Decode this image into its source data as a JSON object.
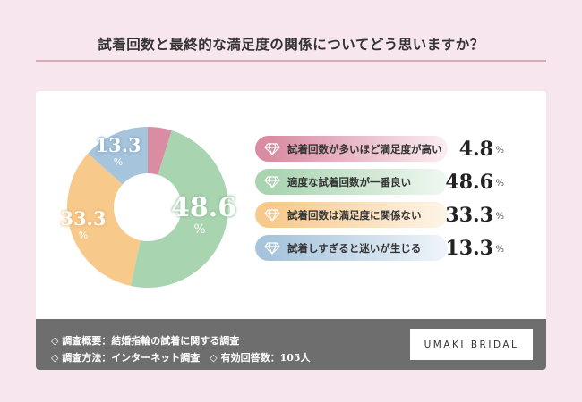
{
  "title": "試着回数と最終的な満足度の関係についてどう思いますか？",
  "chart_data": {
    "type": "pie",
    "subtype": "donut",
    "title": "試着回数と最終的な満足度の関係についてどう思いますか？",
    "categories": [
      "試着回数が多いほど満足度が高い",
      "適度な試着回数が一番良い",
      "試着回数は満足度に関係ない",
      "試着しすぎると迷いが生じる"
    ],
    "values": [
      4.8,
      48.6,
      33.3,
      13.3
    ],
    "unit": "%",
    "colors": [
      "#d98ca2",
      "#a8d4b0",
      "#f7c98b",
      "#a6c4dc"
    ],
    "start_angle": "12 o'clock",
    "direction": "clockwise",
    "legend_position": "right"
  },
  "segment_labels": [
    {
      "num": "48.6",
      "pct": "%"
    },
    {
      "num": "33.3",
      "pct": "%"
    },
    {
      "num": "13.3",
      "pct": "%"
    }
  ],
  "legend": [
    {
      "label": "試着回数が多いほど満足度が高い",
      "value": "4.8",
      "unit": "%",
      "gradient_from": "#d98ca2",
      "gradient_to": "#fbeef2"
    },
    {
      "label": "適度な試着回数が一番良い",
      "value": "48.6",
      "unit": "%",
      "gradient_from": "#a8d4b0",
      "gradient_to": "#f0f8f1"
    },
    {
      "label": "試着回数は満足度に関係ない",
      "value": "33.3",
      "unit": "%",
      "gradient_from": "#f7c98b",
      "gradient_to": "#fdf5e9"
    },
    {
      "label": "試着しすぎると迷いが生じる",
      "value": "13.3",
      "unit": "%",
      "gradient_from": "#a6c4dc",
      "gradient_to": "#f0f5fa"
    }
  ],
  "footer": {
    "line1": "◇ 調査概要：結婚指輪の試着に関する調査",
    "line2": "◇ 調査方法：インターネット調査　◇ 有効回答数：105人",
    "logo": "UMAKI BRIDAL"
  }
}
